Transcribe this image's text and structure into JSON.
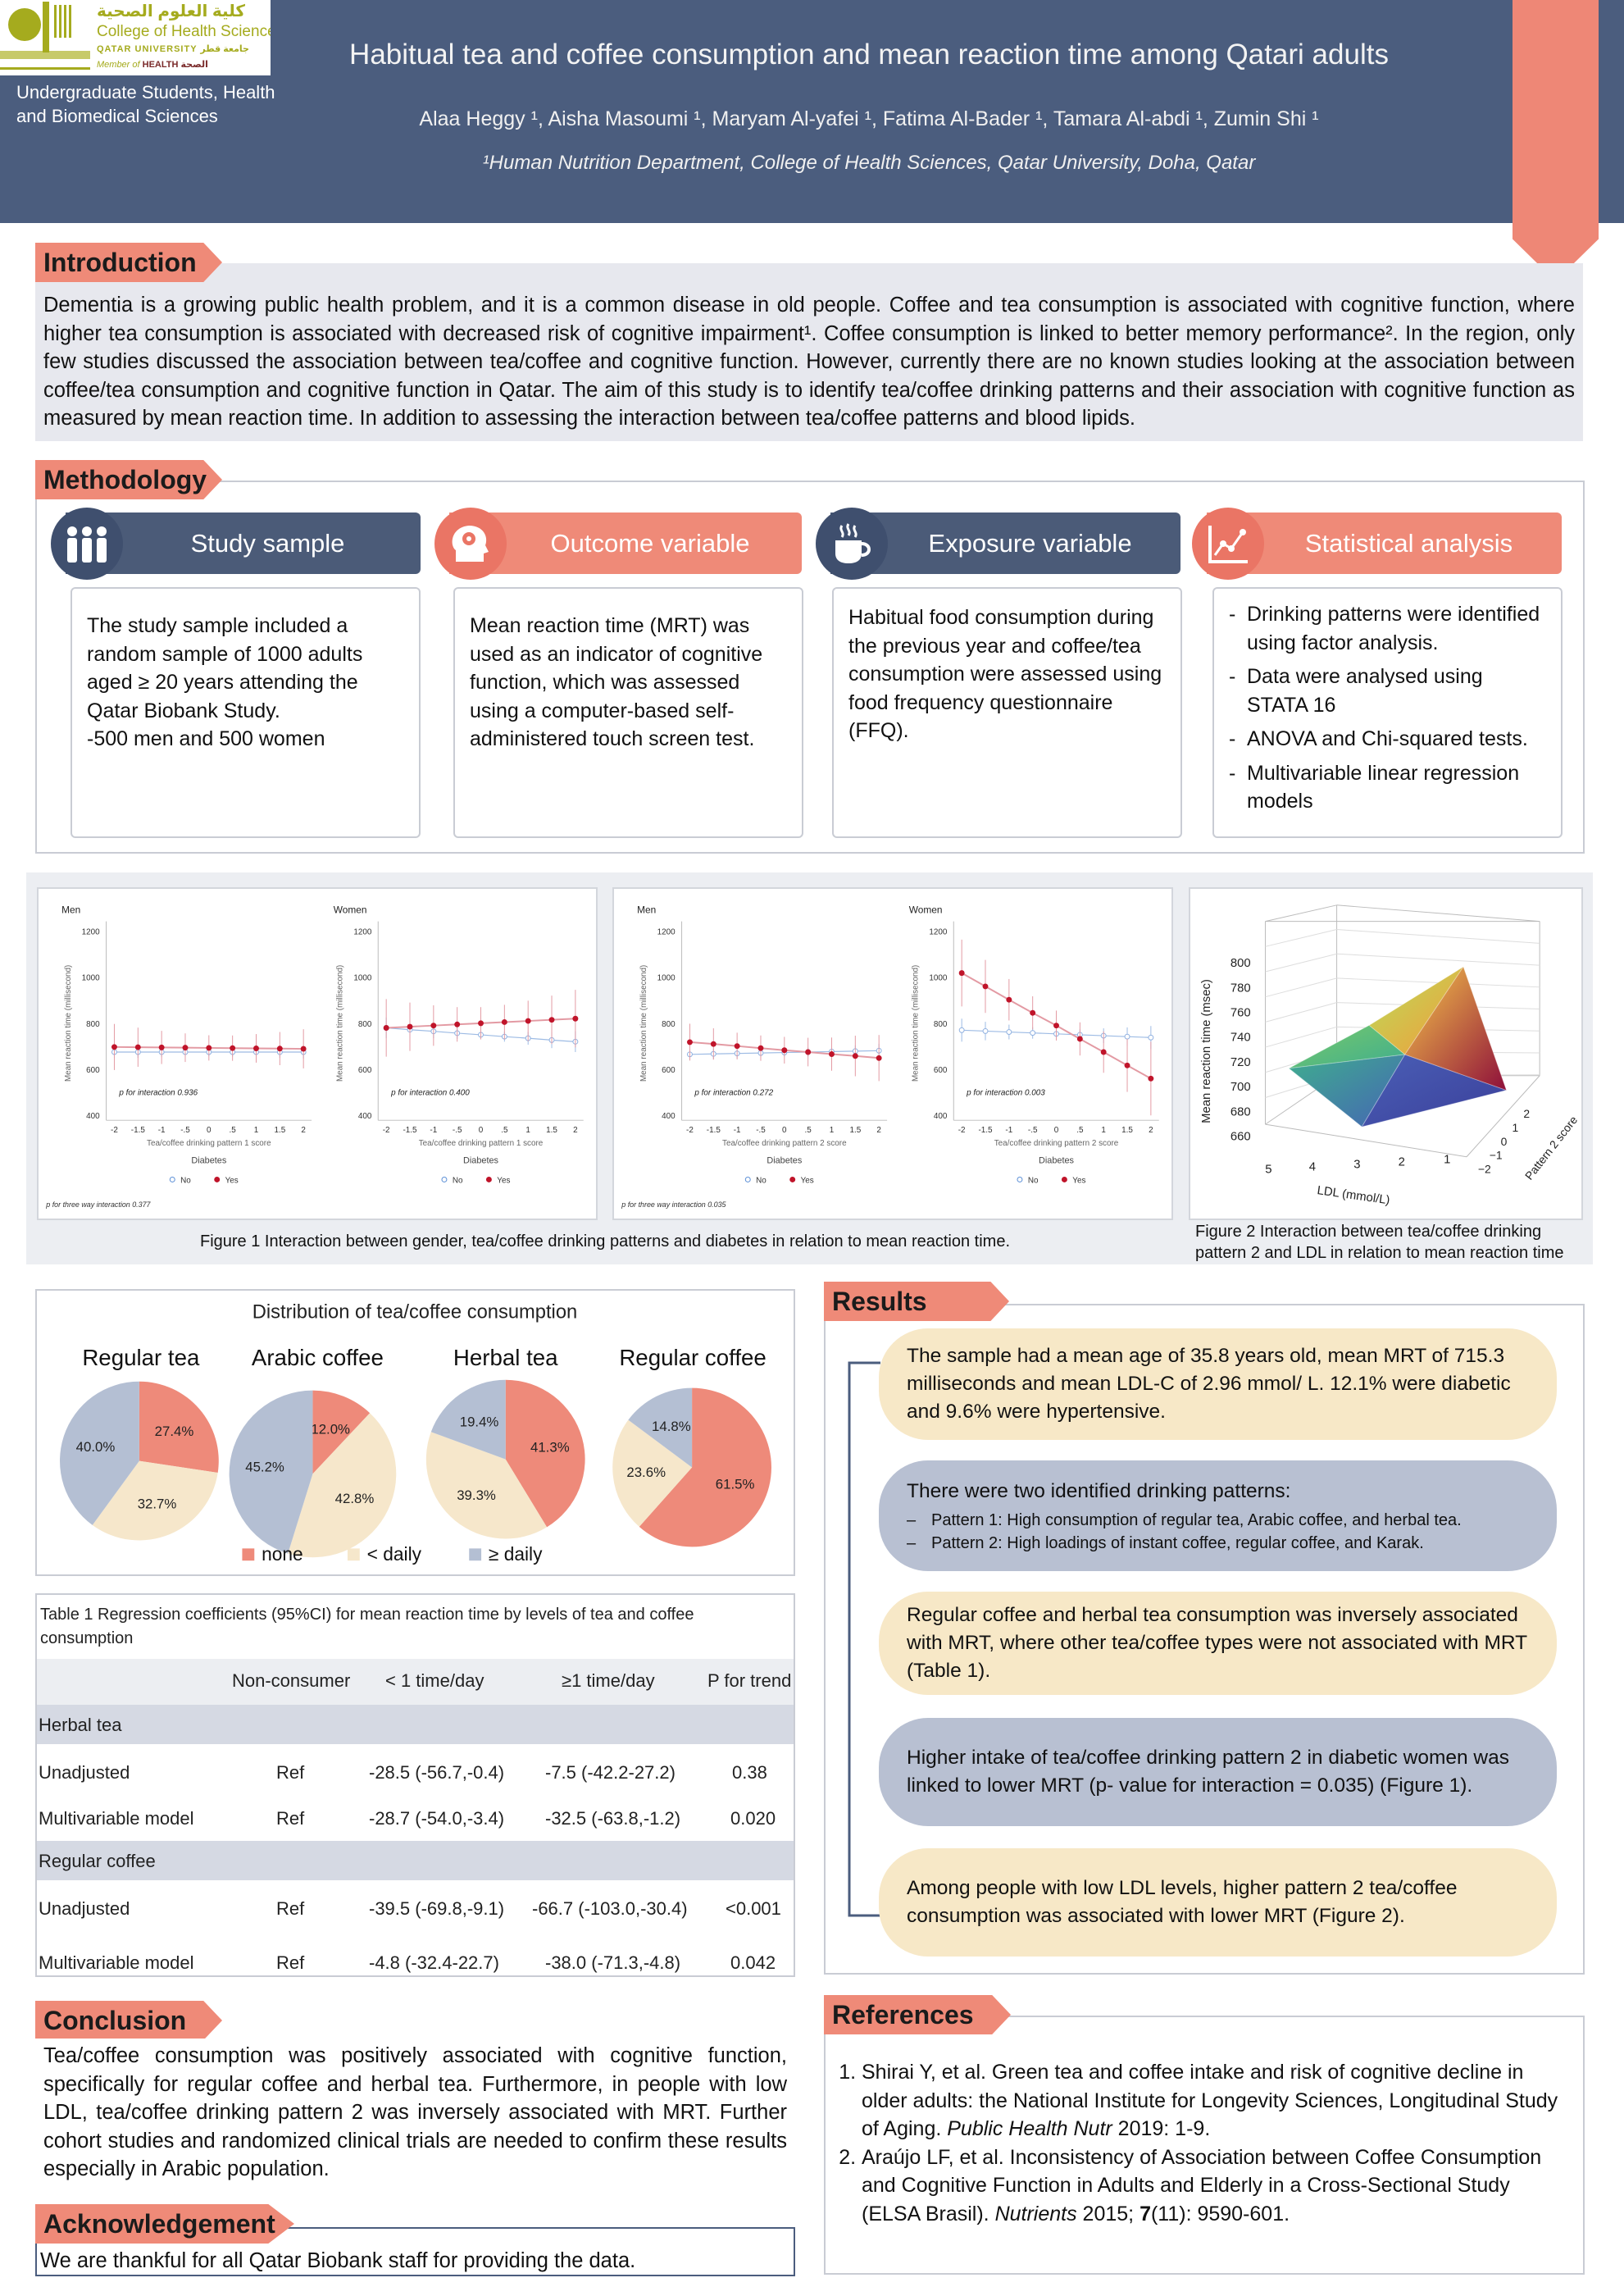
{
  "header": {
    "logo": {
      "arabic": "كلية العلوم الصحية",
      "english": "College of Health Sciences",
      "university": "QATAR UNIVERSITY جامعة قطر",
      "member_prefix": "Member of",
      "member_brand": "HEALTH الصحة"
    },
    "unit": "Undergraduate Students, Health and Biomedical Sciences",
    "title": "Habitual tea and coffee consumption and mean reaction time among Qatari adults",
    "authors": "Alaa Heggy ¹, Aisha Masoumi ¹, Maryam Al-yafei ¹, Fatima Al-Bader ¹, Tamara Al-abdi ¹, Zumin Shi ¹",
    "affiliation": "¹Human Nutrition Department, College of Health Sciences, Qatar University, Doha, Qatar"
  },
  "introduction": {
    "heading": "Introduction",
    "body": "Dementia is a growing public health problem, and it is a common disease in old people. Coffee and tea consumption is associated with cognitive function, where higher tea consumption is associated with decreased risk of cognitive impairment¹. Coffee consumption is linked to better memory performance². In the region, only few studies discussed the association between tea/coffee and cognitive function. However, currently there are no known studies looking at the association between coffee/tea consumption and cognitive function in Qatar. The aim of this study is to identify tea/coffee drinking patterns and their association with cognitive function as measured by mean reaction time. In addition to assessing the interaction between tea/coffee patterns and blood lipids."
  },
  "methodology": {
    "heading": "Methodology",
    "cards": [
      {
        "title": "Study sample",
        "icon": "people-icon",
        "body": "The study sample included a random sample of 1000 adults aged ≥ 20 years attending the Qatar Biobank Study.",
        "extra": "-500 men and 500 women"
      },
      {
        "title": "Outcome variable",
        "icon": "head-gear-icon",
        "body": "Mean reaction time (MRT) was used as an indicator of cognitive function, which was assessed using a computer-based self-administered touch screen test."
      },
      {
        "title": "Exposure variable",
        "icon": "hot-cup-icon",
        "body": "Habitual food consumption during the previous year and coffee/tea consumption were assessed using food frequency questionnaire (FFQ)."
      },
      {
        "title": "Statistical analysis",
        "icon": "line-chart-icon",
        "bullets": [
          " Drinking patterns were identified using factor analysis.",
          "Data were analysed using STATA 16",
          "ANOVA and Chi-squared tests.",
          "Multivariable linear regression models"
        ]
      }
    ]
  },
  "figures": {
    "fig1_caption": "Figure 1 Interaction between gender, tea/coffee drinking patterns and diabetes in relation to mean reaction time.",
    "fig2_caption_1": "Figure 2 Interaction between tea/coffee drinking",
    "fig2_caption_2": "pattern 2 and LDL in relation to mean reaction time"
  },
  "chart_data": [
    {
      "type": "line",
      "figure": "Figure 1 (pattern 1)",
      "three_way": "p for three way interaction 0.377",
      "x": [
        -2,
        -1.5,
        -1,
        -0.5,
        0,
        0.5,
        1,
        1.5,
        2
      ],
      "x_tick_labels": [
        "-2",
        "-1.5",
        "-1",
        "-.5",
        "0",
        ".5",
        "1",
        "1.5",
        "2"
      ],
      "ylim": [
        400,
        1200
      ],
      "y_ticks": [
        400,
        600,
        800,
        1000,
        1200
      ],
      "ylabel": "Mean reaction time (millisecond)",
      "xlabel": "Tea/coffee drinking pattern 1 score",
      "legend_title": "Diabetes",
      "legend": [
        "No",
        "Yes"
      ],
      "panels": [
        {
          "title": "Men",
          "p_text": "p for interaction 0.936",
          "series": [
            {
              "name": "No",
              "values": [
                675,
                675,
                675,
                675,
                675,
                675,
                675,
                675,
                675
              ],
              "ci": [
                25,
                25,
                22,
                20,
                18,
                20,
                22,
                25,
                28
              ]
            },
            {
              "name": "Yes",
              "values": [
                697,
                696,
                695,
                694,
                693,
                692,
                691,
                690,
                689
              ],
              "ci": [
                100,
                85,
                72,
                62,
                55,
                55,
                62,
                72,
                85
              ]
            }
          ]
        },
        {
          "title": "Women",
          "p_text": "p for interaction 0.400",
          "series": [
            {
              "name": "No",
              "values": [
                780,
                772,
                765,
                757,
                750,
                742,
                735,
                727,
                720
              ],
              "ci": [
                45,
                38,
                30,
                25,
                20,
                22,
                28,
                35,
                45
              ]
            },
            {
              "name": "Yes",
              "values": [
                780,
                785,
                790,
                795,
                800,
                805,
                810,
                815,
                820
              ],
              "ci": [
                125,
                105,
                88,
                75,
                70,
                75,
                88,
                105,
                125
              ]
            }
          ]
        }
      ]
    },
    {
      "type": "line",
      "figure": "Figure 1 (pattern 2)",
      "three_way": "p for three way interaction 0.035",
      "x": [
        -2,
        -1.5,
        -1,
        -0.5,
        0,
        0.5,
        1,
        1.5,
        2
      ],
      "x_tick_labels": [
        "-2",
        "-1.5",
        "-1",
        "-.5",
        "0",
        ".5",
        "1",
        "1.5",
        "2"
      ],
      "ylim": [
        400,
        1200
      ],
      "y_ticks": [
        400,
        600,
        800,
        1000,
        1200
      ],
      "ylabel": "Mean reaction time (millisecond)",
      "xlabel": "Tea/coffee drinking pattern 2 score",
      "legend_title": "Diabetes",
      "legend": [
        "No",
        "Yes"
      ],
      "panels": [
        {
          "title": "Men",
          "p_text": "p for interaction 0.272",
          "series": [
            {
              "name": "No",
              "values": [
                665,
                667,
                669,
                671,
                673,
                675,
                677,
                679,
                681
              ],
              "ci": [
                25,
                22,
                20,
                18,
                18,
                20,
                22,
                25,
                30
              ]
            },
            {
              "name": "Yes",
              "values": [
                718,
                710,
                701,
                692,
                683,
                675,
                666,
                658,
                649
              ],
              "ci": [
                80,
                68,
                58,
                55,
                58,
                62,
                72,
                88,
                100
              ]
            }
          ]
        },
        {
          "title": "Women",
          "p_text": "p for interaction 0.003",
          "series": [
            {
              "name": "No",
              "values": [
                770,
                766,
                762,
                758,
                754,
                750,
                746,
                742,
                738
              ],
              "ci": [
                50,
                40,
                32,
                25,
                22,
                25,
                32,
                40,
                50
              ]
            },
            {
              "name": "Yes",
              "values": [
                1018,
                960,
                902,
                845,
                790,
                732,
                675,
                617,
                560
              ],
              "ci": [
                145,
                115,
                90,
                72,
                65,
                72,
                90,
                115,
                160
              ]
            }
          ]
        }
      ]
    },
    {
      "type": "surface",
      "figure": "Figure 2",
      "zlabel": "Mean reaction time (msec)",
      "z_ticks": [
        800,
        780,
        760,
        740,
        720,
        700,
        680,
        660
      ],
      "xlabel": "LDL (mmol/L)",
      "x_ticks": [
        "5",
        "4",
        "3",
        "2",
        "1"
      ],
      "ylabel": "Pattern 2 score",
      "y_ticks": [
        "−2",
        "−1",
        "0",
        "1",
        "2"
      ]
    },
    {
      "type": "pie",
      "title": "Distribution of tea/coffee consumption",
      "legend": [
        "none",
        "< daily",
        "≥ daily"
      ],
      "colors": [
        "#ee8a7a",
        "#f6e7cb",
        "#b4bfd3"
      ],
      "pies": [
        {
          "name": "Regular tea",
          "values": [
            27.4,
            32.7,
            40.0
          ],
          "labels": [
            "27.4%",
            "32.7%",
            "40.0%"
          ]
        },
        {
          "name": "Arabic coffee",
          "values": [
            12.0,
            42.8,
            45.2
          ],
          "labels": [
            "12.0%",
            "42.8%",
            "45.2%"
          ]
        },
        {
          "name": "Herbal tea",
          "values": [
            41.3,
            39.3,
            19.4
          ],
          "labels": [
            "41.3%",
            "39.3%",
            "19.4%"
          ]
        },
        {
          "name": "Regular coffee",
          "values": [
            61.5,
            23.6,
            14.8
          ],
          "labels": [
            "61.5%",
            "23.6%",
            "14.8%"
          ]
        }
      ]
    }
  ],
  "table": {
    "caption": "Table 1 Regression coefficients (95%CI) for mean reaction time by levels of tea and coffee consumption",
    "columns": [
      "",
      "Non-consumer",
      "< 1 time/day",
      "≥1 time/day",
      "P for trend"
    ],
    "groups": [
      {
        "name": "Herbal tea",
        "rows": [
          [
            "Unadjusted",
            "Ref",
            "-28.5 (-56.7,-0.4)",
            "-7.5 (-42.2-27.2)",
            "0.38"
          ],
          [
            "Multivariable model",
            "Ref",
            "-28.7 (-54.0,-3.4)",
            "-32.5 (-63.8,-1.2)",
            "0.020"
          ]
        ]
      },
      {
        "name": "Regular coffee",
        "rows": [
          [
            "Unadjusted",
            "Ref",
            "-39.5 (-69.8,-9.1)",
            "-66.7 (-103.0,-30.4)",
            "<0.001"
          ],
          [
            "Multivariable model",
            "Ref",
            "-4.8 (-32.4-22.7)",
            "-38.0 (-71.3,-4.8)",
            "0.042"
          ]
        ]
      }
    ]
  },
  "conclusion": {
    "heading": "Conclusion",
    "body": "Tea/coffee consumption was positively associated with cognitive function, specifically for regular coffee and herbal tea. Furthermore, in people with low LDL, tea/coffee drinking pattern 2 was inversely associated with MRT. Further cohort studies and randomized clinical trials are needed to confirm these results especially in Arabic population."
  },
  "acknowledgement": {
    "heading": "Acknowledgement",
    "body": "We are thankful for all Qatar Biobank staff for providing the data."
  },
  "results": {
    "heading": "Results",
    "items": [
      {
        "text": "The sample had a mean age of 35.8 years old, mean MRT of 715.3 milliseconds and mean LDL-C of 2.96 mmol/ L. 12.1% were diabetic and 9.6% were hypertensive."
      },
      {
        "text": "There were two identified drinking patterns:",
        "bullets": [
          "Pattern 1: High consumption of regular tea, Arabic coffee, and herbal tea.",
          "Pattern 2: High loadings of instant coffee, regular coffee, and Karak."
        ]
      },
      {
        "text": "Regular coffee and herbal tea consumption was inversely associated with MRT, where other tea/coffee types were not associated with MRT (Table 1)."
      },
      {
        "text": "Higher intake of tea/coffee drinking pattern 2 in diabetic women was linked to lower MRT (p- value for interaction = 0.035) (Figure 1)."
      },
      {
        "text": "Among people with low LDL levels, higher pattern 2 tea/coffee consumption was associated with lower MRT (Figure 2)."
      }
    ]
  },
  "references": {
    "heading": "References",
    "items": [
      {
        "text": "Shirai Y, et al. Green tea and coffee intake and risk of cognitive decline in older adults: the National Institute for Longevity Sciences, Longitudinal Study of Aging. ",
        "journal": "Public Health Nutr",
        "rest": " 2019: 1-9."
      },
      {
        "text": "Araújo LF, et al. Inconsistency of Association between Coffee Consumption and Cognitive Function in Adults and Elderly in a Cross-Sectional Study (ELSA Brasil). ",
        "journal": "Nutrients",
        "rest_pre": " 2015; ",
        "volume": "7",
        "rest": "(11): 9590-601."
      }
    ]
  }
}
